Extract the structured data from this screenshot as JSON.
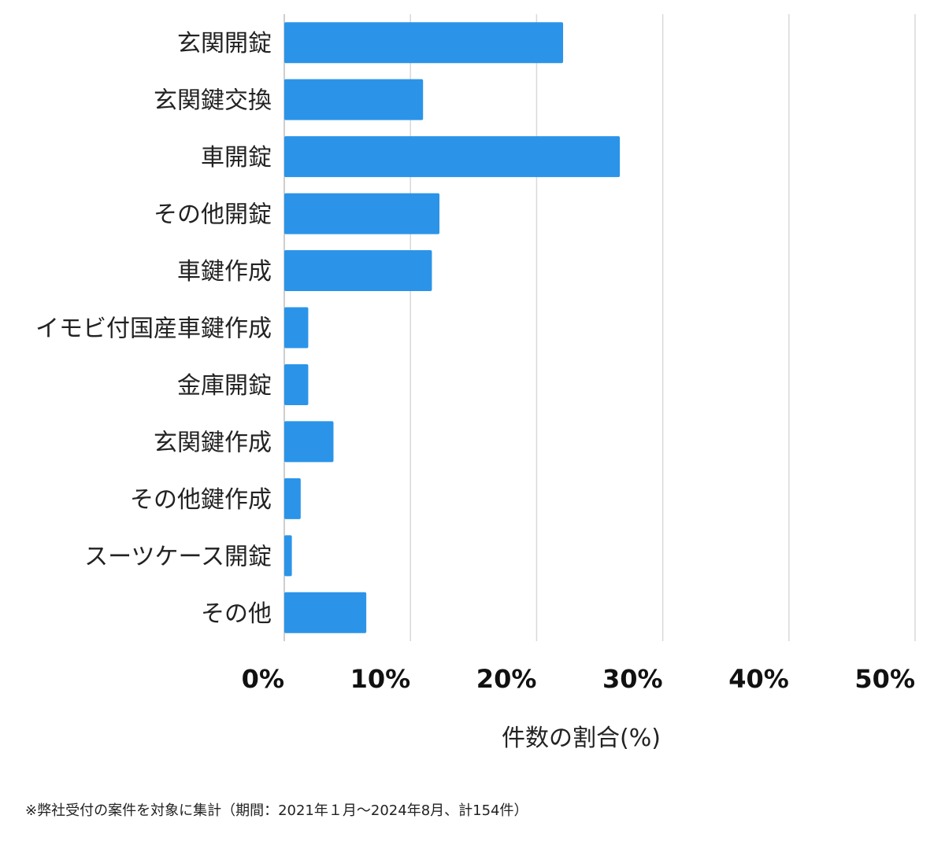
{
  "chart_data": {
    "type": "bar",
    "orientation": "horizontal",
    "categories": [
      "玄関開錠",
      "玄関鍵交換",
      "車開錠",
      "その他開錠",
      "車鍵作成",
      "イモビ付国産車鍵作成",
      "金庫開錠",
      "玄関鍵作成",
      "その他鍵作成",
      "スーツケース開錠",
      "その他"
    ],
    "values": [
      22.1,
      11.0,
      26.6,
      12.3,
      11.7,
      1.9,
      1.9,
      3.9,
      1.3,
      0.6,
      6.5
    ],
    "xlabel": "件数の割合(%)",
    "ylabel": "",
    "xlim": [
      0,
      50
    ],
    "ticks": [
      0,
      10,
      20,
      30,
      40,
      50
    ],
    "tick_labels": [
      "0%",
      "10%",
      "20%",
      "30%",
      "40%",
      "50%"
    ],
    "grid": true,
    "bar_color": "#2b94e8",
    "grid_color": "#d9d9d9"
  },
  "footnote": "※弊社受付の案件を対象に集計（期間：2021年１月〜2024年8月、計154件）"
}
